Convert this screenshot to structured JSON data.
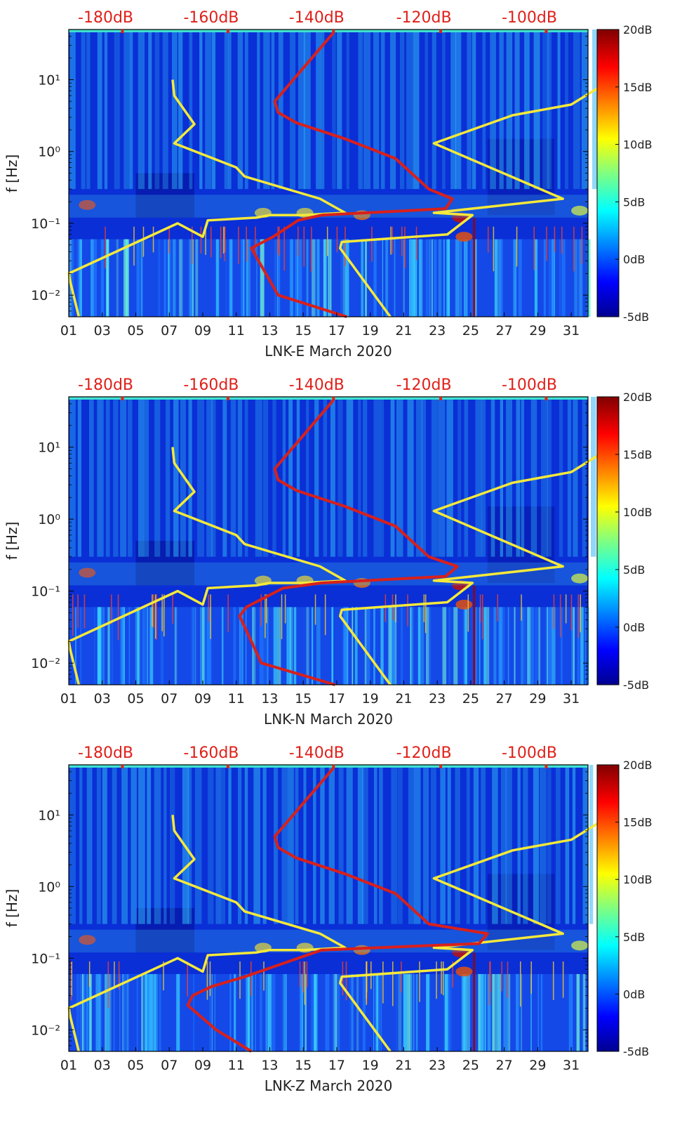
{
  "chart_data": [
    {
      "type": "heatmap",
      "title": "LNK-E March 2020",
      "xlabel": "LNK-E March 2020",
      "ylabel": "f [Hz]",
      "x_ticks": [
        "01",
        "03",
        "05",
        "07",
        "09",
        "11",
        "13",
        "15",
        "17",
        "19",
        "21",
        "23",
        "25",
        "27",
        "29",
        "31"
      ],
      "y_ticks": [
        "10⁻²",
        "10⁻¹",
        "10⁰",
        "10¹"
      ],
      "y_scale": "log",
      "ylim": [
        0.005,
        50
      ],
      "xlim": [
        1,
        32
      ],
      "top_scale_labels": [
        "-180dB",
        "-160dB",
        "-140dB",
        "-120dB",
        "-100dB"
      ],
      "colorbar": {
        "labels": [
          "20dB",
          "15dB",
          "10dB",
          "5dB",
          "0dB",
          "-5dB"
        ],
        "range": [
          -5,
          20
        ]
      },
      "colors": {
        "red_line": "#d8201c",
        "yellow_line": "#f5e93a"
      },
      "series": [
        {
          "color": "yellow",
          "x": [
            7.2,
            7.3,
            8.5,
            7.3,
            11,
            11.5,
            16,
            17.5,
            15,
            13,
            12.2,
            9.3,
            9,
            7.5,
            1,
            1.1,
            1.6
          ],
          "y": [
            10,
            6,
            2.4,
            1.3,
            0.6,
            0.45,
            0.22,
            0.14,
            0.13,
            0.13,
            0.12,
            0.11,
            0.065,
            0.1,
            0.02,
            0.015,
            0.005
          ]
        },
        {
          "color": "yellow",
          "x": [
            20.2,
            17.2,
            17.3,
            23.6,
            25.1,
            22.8,
            30.5,
            22.8,
            27.5,
            31,
            33.4
          ],
          "y": [
            0.005,
            0.045,
            0.055,
            0.07,
            0.13,
            0.14,
            0.22,
            1.3,
            3.2,
            4.5,
            10
          ]
        },
        {
          "color": "red",
          "x": [
            17.6,
            13.5,
            11.9,
            13.2,
            14.7,
            16.1,
            23.5,
            23.9,
            22.5,
            20.5,
            17.5,
            14.6,
            13.5,
            13.3,
            16.8
          ],
          "y": [
            0.005,
            0.01,
            0.045,
            0.065,
            0.11,
            0.13,
            0.16,
            0.22,
            0.3,
            0.8,
            1.5,
            2.5,
            3.5,
            5,
            45
          ]
        }
      ]
    },
    {
      "type": "heatmap",
      "title": "LNK-N March 2020",
      "xlabel": "LNK-N March 2020",
      "ylabel": "f [Hz]",
      "x_ticks": [
        "01",
        "03",
        "05",
        "07",
        "09",
        "11",
        "13",
        "15",
        "17",
        "19",
        "21",
        "23",
        "25",
        "27",
        "29",
        "31"
      ],
      "y_ticks": [
        "10⁻²",
        "10⁻¹",
        "10⁰",
        "10¹"
      ],
      "y_scale": "log",
      "ylim": [
        0.005,
        50
      ],
      "xlim": [
        1,
        32
      ],
      "top_scale_labels": [
        "-180dB",
        "-160dB",
        "-140dB",
        "-120dB",
        "-100dB"
      ],
      "colorbar": {
        "labels": [
          "20dB",
          "15dB",
          "10dB",
          "5dB",
          "0dB",
          "-5dB"
        ],
        "range": [
          -5,
          20
        ]
      },
      "colors": {
        "red_line": "#d8201c",
        "yellow_line": "#f5e93a"
      },
      "series": [
        {
          "color": "yellow",
          "x": [
            7.2,
            7.3,
            8.5,
            7.3,
            11,
            11.5,
            16,
            17.5,
            15,
            13,
            12.2,
            9.3,
            9,
            7.5,
            1,
            1.1,
            1.6
          ],
          "y": [
            10,
            6,
            2.4,
            1.3,
            0.6,
            0.45,
            0.22,
            0.14,
            0.13,
            0.13,
            0.12,
            0.11,
            0.065,
            0.1,
            0.02,
            0.015,
            0.005
          ]
        },
        {
          "color": "yellow",
          "x": [
            20.2,
            17.2,
            17.3,
            23.6,
            25.1,
            22.8,
            30.5,
            22.8,
            27.5,
            31,
            33.4
          ],
          "y": [
            0.005,
            0.045,
            0.055,
            0.07,
            0.13,
            0.14,
            0.22,
            1.3,
            3.2,
            4.5,
            10
          ]
        },
        {
          "color": "red",
          "x": [
            16.9,
            12.5,
            11.2,
            11.6,
            13.8,
            16.1,
            23.5,
            24.2,
            22.5,
            20.5,
            17.5,
            14.6,
            13.5,
            13.3,
            16.8
          ],
          "y": [
            0.005,
            0.01,
            0.045,
            0.06,
            0.11,
            0.13,
            0.16,
            0.22,
            0.3,
            0.8,
            1.5,
            2.5,
            3.5,
            5,
            45
          ]
        }
      ]
    },
    {
      "type": "heatmap",
      "title": "LNK-Z March 2020",
      "xlabel": "LNK-Z March 2020",
      "ylabel": "f [Hz]",
      "x_ticks": [
        "01",
        "03",
        "05",
        "07",
        "09",
        "11",
        "13",
        "15",
        "17",
        "19",
        "21",
        "23",
        "25",
        "27",
        "29",
        "31"
      ],
      "y_ticks": [
        "10⁻²",
        "10⁻¹",
        "10⁰",
        "10¹"
      ],
      "y_scale": "log",
      "ylim": [
        0.005,
        50
      ],
      "xlim": [
        1,
        32
      ],
      "top_scale_labels": [
        "-180dB",
        "-160dB",
        "-140dB",
        "-120dB",
        "-100dB"
      ],
      "colorbar": {
        "labels": [
          "20dB",
          "15dB",
          "10dB",
          "5dB",
          "0dB",
          "-5dB"
        ],
        "range": [
          -5,
          20
        ]
      },
      "colors": {
        "red_line": "#d8201c",
        "yellow_line": "#f5e93a"
      },
      "series": [
        {
          "color": "yellow",
          "x": [
            7.2,
            7.3,
            8.5,
            7.3,
            11,
            11.5,
            16,
            17.5,
            15,
            13,
            12.2,
            9.3,
            9,
            7.5,
            1,
            1.1,
            1.6
          ],
          "y": [
            10,
            6,
            2.4,
            1.3,
            0.6,
            0.45,
            0.22,
            0.14,
            0.13,
            0.13,
            0.12,
            0.11,
            0.065,
            0.1,
            0.02,
            0.015,
            0.005
          ]
        },
        {
          "color": "yellow",
          "x": [
            20.2,
            17.2,
            17.3,
            23.6,
            25.1,
            22.8,
            30.5,
            22.8,
            27.5,
            31,
            33.4
          ],
          "y": [
            0.005,
            0.045,
            0.055,
            0.07,
            0.13,
            0.14,
            0.22,
            1.3,
            3.2,
            4.5,
            10
          ]
        },
        {
          "color": "red",
          "x": [
            11.9,
            9.8,
            8.1,
            8.4,
            9.5,
            11.5,
            16.1,
            25.5,
            26,
            22.5,
            20.5,
            17.5,
            14.6,
            13.5,
            13.3,
            16.8
          ],
          "y": [
            0.005,
            0.01,
            0.022,
            0.03,
            0.04,
            0.055,
            0.13,
            0.16,
            0.22,
            0.3,
            0.8,
            1.5,
            2.5,
            3.5,
            5,
            45
          ]
        }
      ]
    }
  ]
}
